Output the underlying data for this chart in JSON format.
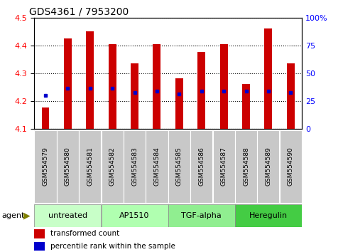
{
  "title": "GDS4361 / 7953200",
  "samples": [
    "GSM554579",
    "GSM554580",
    "GSM554581",
    "GSM554582",
    "GSM554583",
    "GSM554584",
    "GSM554585",
    "GSM554586",
    "GSM554587",
    "GSM554588",
    "GSM554589",
    "GSM554590"
  ],
  "red_values": [
    4.175,
    4.425,
    4.45,
    4.405,
    4.335,
    4.405,
    4.28,
    4.375,
    4.405,
    4.26,
    4.46,
    4.335
  ],
  "blue_values": [
    4.22,
    4.245,
    4.245,
    4.245,
    4.23,
    4.235,
    4.225,
    4.235,
    4.235,
    4.235,
    4.235,
    4.23
  ],
  "ymin": 4.1,
  "ymax": 4.5,
  "yticks_left": [
    4.1,
    4.2,
    4.3,
    4.4,
    4.5
  ],
  "yticks_right": [
    0,
    25,
    50,
    75,
    100
  ],
  "bar_color": "#cc0000",
  "dot_color": "#0000cc",
  "bar_width": 0.35,
  "sample_box_color": "#c8c8c8",
  "groups": [
    {
      "label": "untreated",
      "start": 0,
      "end": 2,
      "color": "#c8ffc8"
    },
    {
      "label": "AP1510",
      "start": 3,
      "end": 5,
      "color": "#b0ffb0"
    },
    {
      "label": "TGF-alpha",
      "start": 6,
      "end": 8,
      "color": "#90ee90"
    },
    {
      "label": "Heregulin",
      "start": 9,
      "end": 11,
      "color": "#44cc44"
    }
  ],
  "legend_red": "transformed count",
  "legend_blue": "percentile rank within the sample",
  "fig_width": 4.83,
  "fig_height": 3.54,
  "dpi": 100
}
